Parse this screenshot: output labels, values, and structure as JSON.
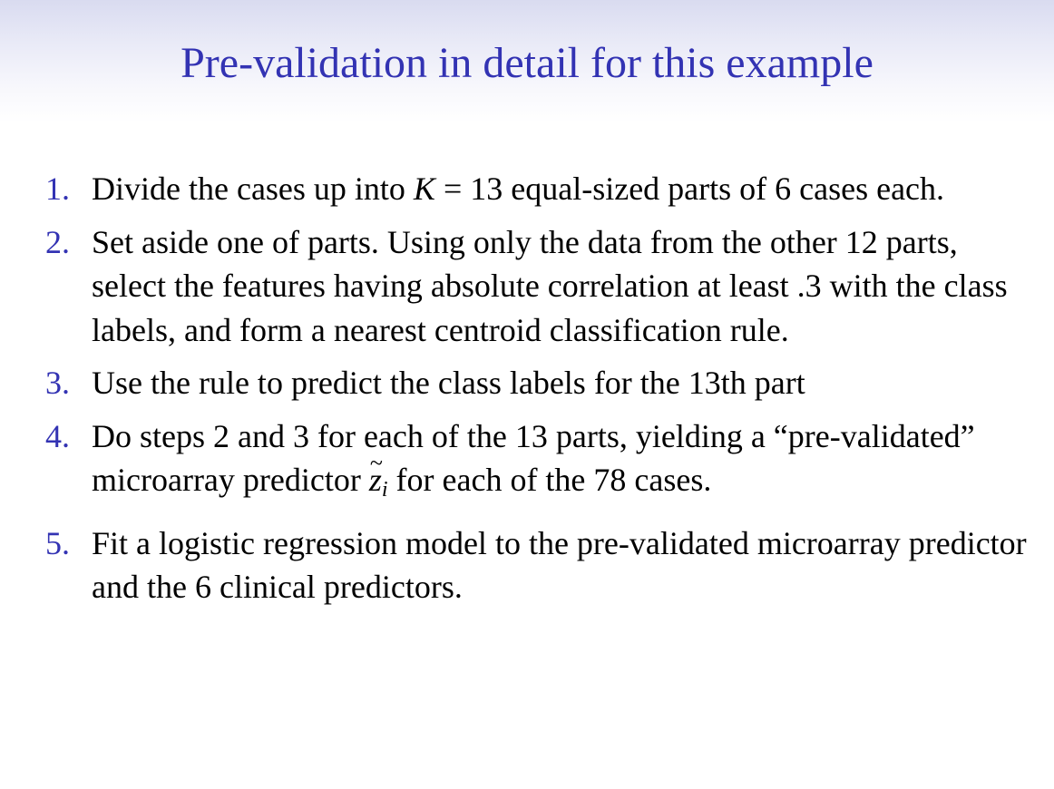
{
  "title": "Pre-validation in detail for this example",
  "steps": [
    {
      "number": "1.",
      "text_a": "Divide the cases up into ",
      "math_var": "K",
      "math_eq": " = ",
      "text_b": "13 equal-sized parts of 6 cases each."
    },
    {
      "number": "2.",
      "text": "Set aside one of parts. Using only the data from the other 12 parts, select the features having absolute correlation at least .3 with the class labels, and form a nearest centroid classification rule."
    },
    {
      "number": "3.",
      "text": "Use the rule to predict the class labels for the 13th part"
    },
    {
      "number": "4.",
      "text_a": "Do steps 2 and 3 for each of the 13 parts, yielding a “pre-validated” microarray predictor ",
      "math_var": "z",
      "math_sub": "i",
      "text_b": " for each of the 78 cases."
    },
    {
      "number": "5.",
      "text": "Fit a logistic regression model to the pre-validated microarray predictor and the 6 clinical predictors."
    }
  ]
}
